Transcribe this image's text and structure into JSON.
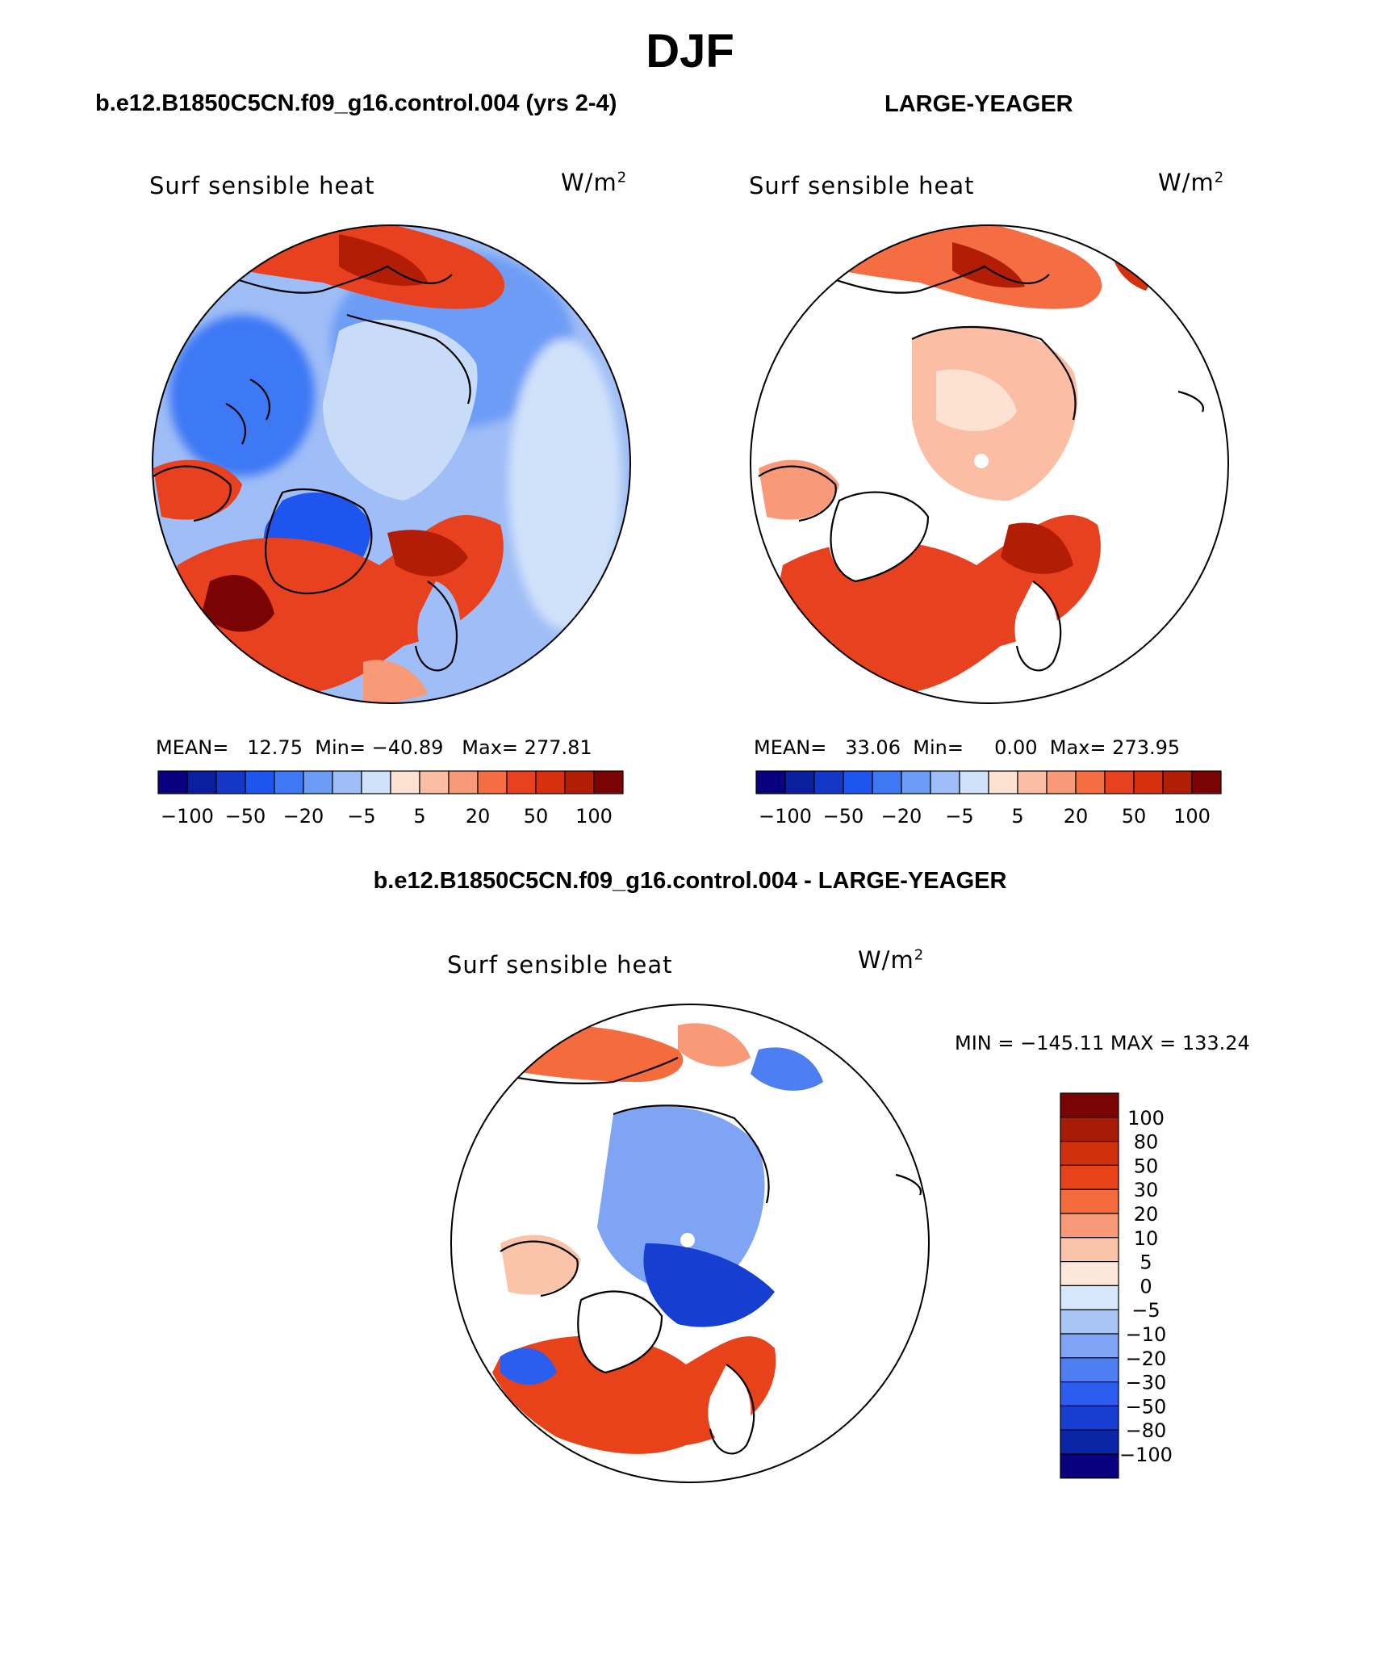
{
  "page": {
    "title": "DJF",
    "diff_title": "b.e12.B1850C5CN.f09_g16.control.004 - LARGE-YEAGER"
  },
  "colors": {
    "scale": [
      "#08007f",
      "#0a1f9e",
      "#1338c8",
      "#1f55ef",
      "#3e78f5",
      "#6d9cf6",
      "#9fbdf6",
      "#d0e2fa",
      "#fde2d2",
      "#fbbda3",
      "#f89a78",
      "#f46d43",
      "#e8411f",
      "#d6300f",
      "#b11e05",
      "#7a0403"
    ],
    "ocean_blue": "#a4c2f4",
    "land_white": "#ffffff"
  },
  "chart_data": [
    {
      "type": "polar-contour-map",
      "panel": "left",
      "case_title": "b.e12.B1850C5CN.f09_g16.control.004 (yrs 2-4)",
      "variable": "Surf sensible heat",
      "units": "W/m",
      "units_exp": "2",
      "stats": {
        "mean_label": "MEAN=",
        "mean": "12.75",
        "min_label": "Min=",
        "min": "−40.89",
        "max_label": "Max=",
        "max": "277.81"
      },
      "colorbar_ticks": [
        "−100",
        "−50",
        "−20",
        "−5",
        "5",
        "20",
        "50",
        "100"
      ]
    },
    {
      "type": "polar-contour-map",
      "panel": "right",
      "case_title": "LARGE-YEAGER",
      "variable": "Surf sensible heat",
      "units": "W/m",
      "units_exp": "2",
      "stats": {
        "mean_label": "MEAN=",
        "mean": "33.06",
        "min_label": "Min=",
        "min": "0.00",
        "max_label": "Max=",
        "max": "273.95"
      },
      "colorbar_ticks": [
        "−100",
        "−50",
        "−20",
        "−5",
        "5",
        "20",
        "50",
        "100"
      ]
    },
    {
      "type": "polar-contour-map",
      "panel": "difference",
      "variable": "Surf sensible heat",
      "units": "W/m",
      "units_exp": "2",
      "minmax": {
        "min_label": "MIN =",
        "min": "−145.11",
        "max_label": "MAX =",
        "max": "133.24"
      },
      "colorbar_levels": [
        "100",
        "80",
        "50",
        "30",
        "20",
        "10",
        "5",
        "0",
        "−5",
        "−10",
        "−20",
        "−30",
        "−50",
        "−80",
        "−100"
      ],
      "colorbar_colors": [
        "#7a0403",
        "#a81b06",
        "#d0300b",
        "#e8421b",
        "#f46b3e",
        "#f89a78",
        "#fbc3a8",
        "#fde7da",
        "#d6e6fb",
        "#a9c5f6",
        "#7ea4f3",
        "#4d7ef2",
        "#2a5df0",
        "#163fd1",
        "#0a25a6",
        "#08007f"
      ]
    }
  ]
}
